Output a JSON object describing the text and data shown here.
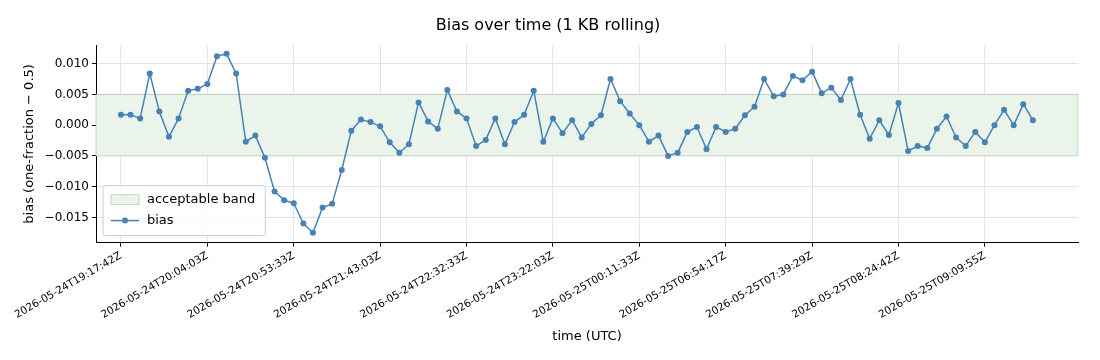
{
  "chart_data": {
    "type": "line",
    "title": "Bias over time (1 KB rolling)",
    "xlabel": "time (UTC)",
    "ylabel": "bias (one-fraction − 0.5)",
    "categories": [
      "2026-05-24T19:17:42Z",
      null,
      null,
      null,
      null,
      null,
      null,
      null,
      null,
      "2026-05-24T20:04:03Z",
      null,
      null,
      null,
      null,
      null,
      null,
      null,
      null,
      "2026-05-24T20:53:33Z",
      null,
      null,
      null,
      null,
      null,
      null,
      null,
      null,
      "2026-05-24T21:43:03Z",
      null,
      null,
      null,
      null,
      null,
      null,
      null,
      null,
      "2026-05-24T22:32:33Z",
      null,
      null,
      null,
      null,
      null,
      null,
      null,
      null,
      "2026-05-24T23:22:03Z",
      null,
      null,
      null,
      null,
      null,
      null,
      null,
      null,
      "2026-05-25T00:11:33Z",
      null,
      null,
      null,
      null,
      null,
      null,
      null,
      null,
      "2026-05-25T06:54:17Z",
      null,
      null,
      null,
      null,
      null,
      null,
      null,
      null,
      "2026-05-25T07:39:29Z",
      null,
      null,
      null,
      null,
      null,
      null,
      null,
      null,
      "2026-05-25T08:24:42Z",
      null,
      null,
      null,
      null,
      null,
      null,
      null,
      null,
      "2026-05-25T09:09:55Z",
      null,
      null,
      null,
      null,
      null
    ],
    "series": [
      {
        "name": "bias",
        "color": "#4682b4",
        "values": [
          0.0017,
          0.0017,
          0.0011,
          0.0084,
          0.0022,
          -0.0019,
          0.0011,
          0.0056,
          0.0059,
          0.0067,
          0.0112,
          0.0116,
          0.0084,
          -0.0027,
          -0.0017,
          -0.0053,
          -0.0108,
          -0.0122,
          -0.0127,
          -0.016,
          -0.0175,
          -0.0134,
          -0.0128,
          -0.0073,
          -0.0009,
          0.0009,
          0.0005,
          -0.0002,
          -0.0028,
          -0.0045,
          -0.0031,
          0.0037,
          0.0006,
          -0.0006,
          0.0057,
          0.0022,
          0.0011,
          -0.0034,
          -0.0024,
          0.0011,
          -0.0031,
          0.0005,
          0.0017,
          0.0056,
          -0.0027,
          0.0011,
          -0.0013,
          0.0008,
          -0.002,
          0.0002,
          0.0016,
          0.0075,
          0.0039,
          0.0019,
          0.0,
          -0.0027,
          -0.0017,
          -0.005,
          -0.0045,
          -0.0011,
          -0.0003,
          -0.0039,
          -0.0003,
          -0.0011,
          -0.0006,
          0.0016,
          0.003,
          0.0075,
          0.0047,
          0.005,
          0.008,
          0.0073,
          0.0087,
          0.0052,
          0.0061,
          0.0041,
          0.0075,
          0.0017,
          -0.0022,
          0.0008,
          -0.0016,
          0.0036,
          -0.0042,
          -0.0034,
          -0.0037,
          -0.0006,
          0.0014,
          -0.002,
          -0.0034,
          -0.0011,
          -0.0028,
          0.0,
          0.0025,
          0.0,
          0.0034,
          0.0008
        ]
      }
    ],
    "ylim": [
      -0.0191,
      0.013
    ],
    "yticks": [
      {
        "value": -0.015,
        "label": "−0.015"
      },
      {
        "value": -0.01,
        "label": "−0.010"
      },
      {
        "value": -0.005,
        "label": "−0.005"
      },
      {
        "value": 0,
        "label": "0.000"
      },
      {
        "value": 0.005,
        "label": "0.005"
      },
      {
        "value": 0.01,
        "label": "0.010"
      }
    ],
    "bands": [
      {
        "axis": "y",
        "from": -0.005,
        "to": 0.005,
        "label": "acceptable band",
        "color": "#eaf4ea"
      }
    ],
    "grid": true,
    "legend": "lower left",
    "marker": "circle",
    "line_style": "solid"
  }
}
